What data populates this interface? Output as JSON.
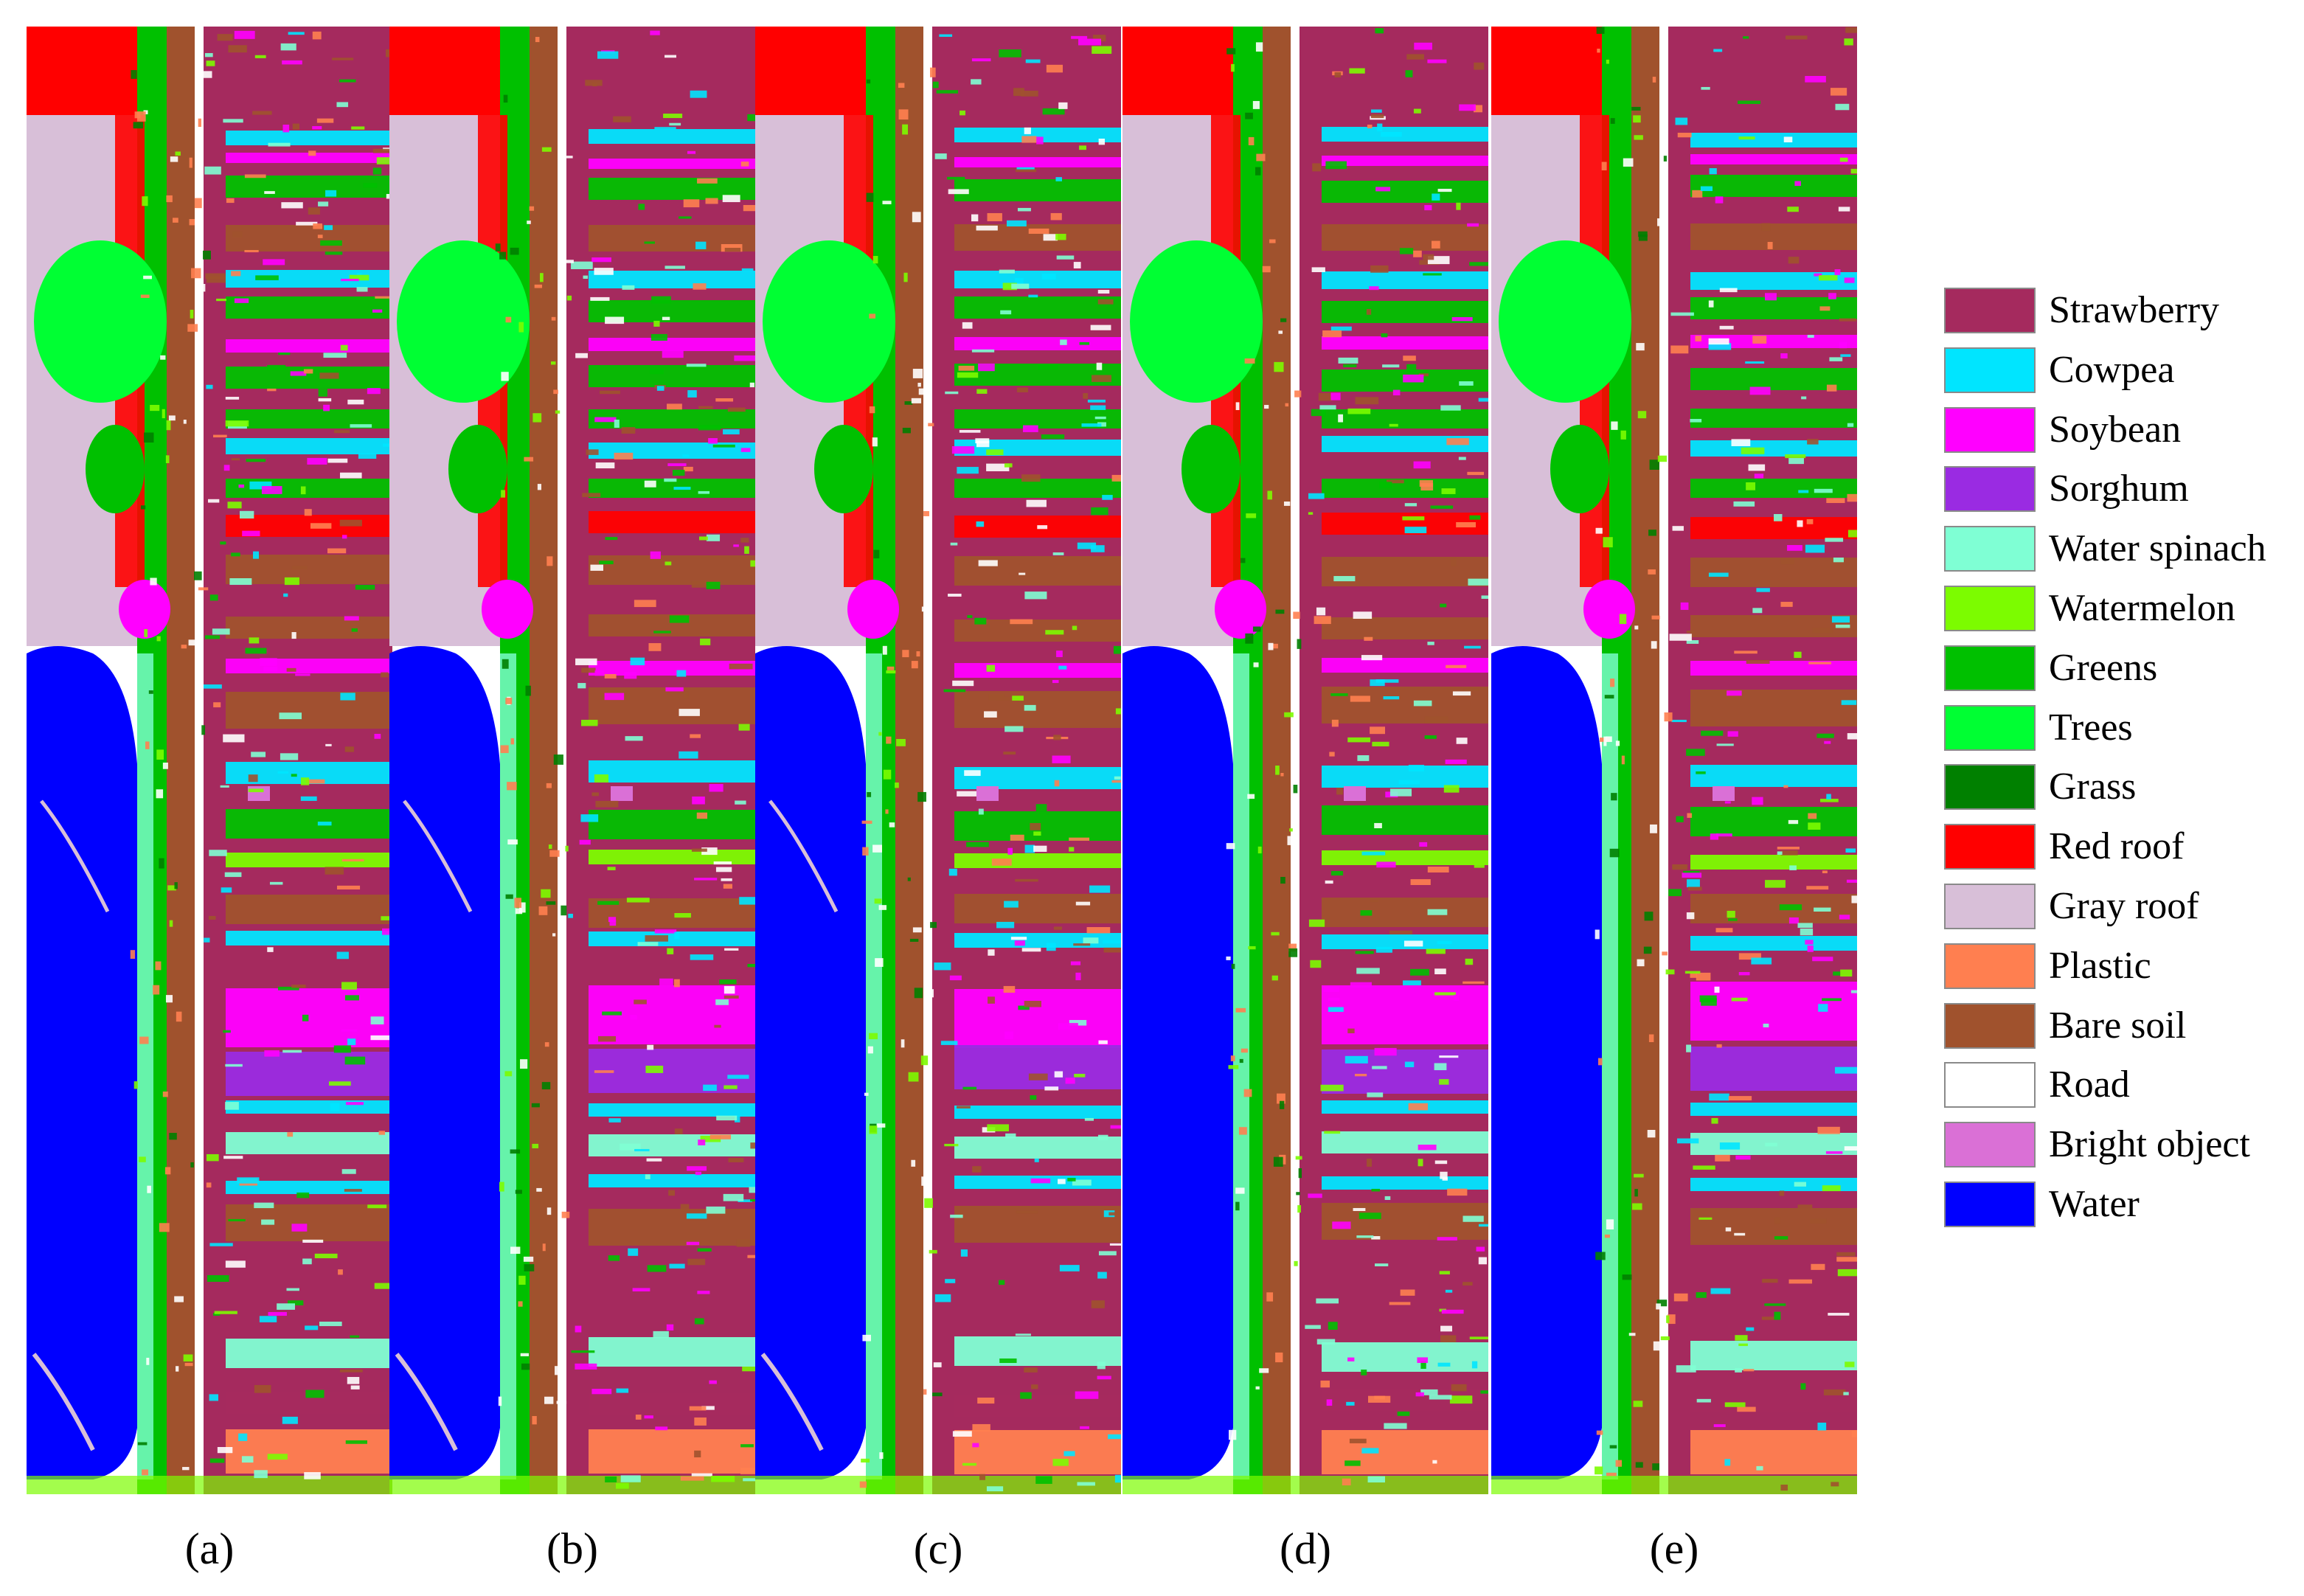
{
  "figure": {
    "panels": [
      {
        "id": "a",
        "label": "(a)"
      },
      {
        "id": "b",
        "label": "(b)"
      },
      {
        "id": "c",
        "label": "(c)"
      },
      {
        "id": "d",
        "label": "(d)"
      },
      {
        "id": "e",
        "label": "(e)"
      }
    ],
    "legend": [
      {
        "label": "Strawberry",
        "color": "#A52A5E"
      },
      {
        "label": "Cowpea",
        "color": "#00E5FF"
      },
      {
        "label": "Soybean",
        "color": "#FF00FF"
      },
      {
        "label": "Sorghum",
        "color": "#9A2BE2"
      },
      {
        "label": "Water spinach",
        "color": "#7FFFD4"
      },
      {
        "label": "Watermelon",
        "color": "#7CFC00"
      },
      {
        "label": "Greens",
        "color": "#00C000"
      },
      {
        "label": "Trees",
        "color": "#00FF33"
      },
      {
        "label": "Grass",
        "color": "#008000"
      },
      {
        "label": "Red roof",
        "color": "#FF0000"
      },
      {
        "label": "Gray roof",
        "color": "#D8BFD8"
      },
      {
        "label": "Plastic",
        "color": "#FF7F50"
      },
      {
        "label": "Bare soil",
        "color": "#A0522D"
      },
      {
        "label": "Road",
        "color": "#FFFFFF"
      },
      {
        "label": "Bright object",
        "color": "#DA70D6"
      },
      {
        "label": "Water",
        "color": "#0000FF"
      }
    ]
  }
}
